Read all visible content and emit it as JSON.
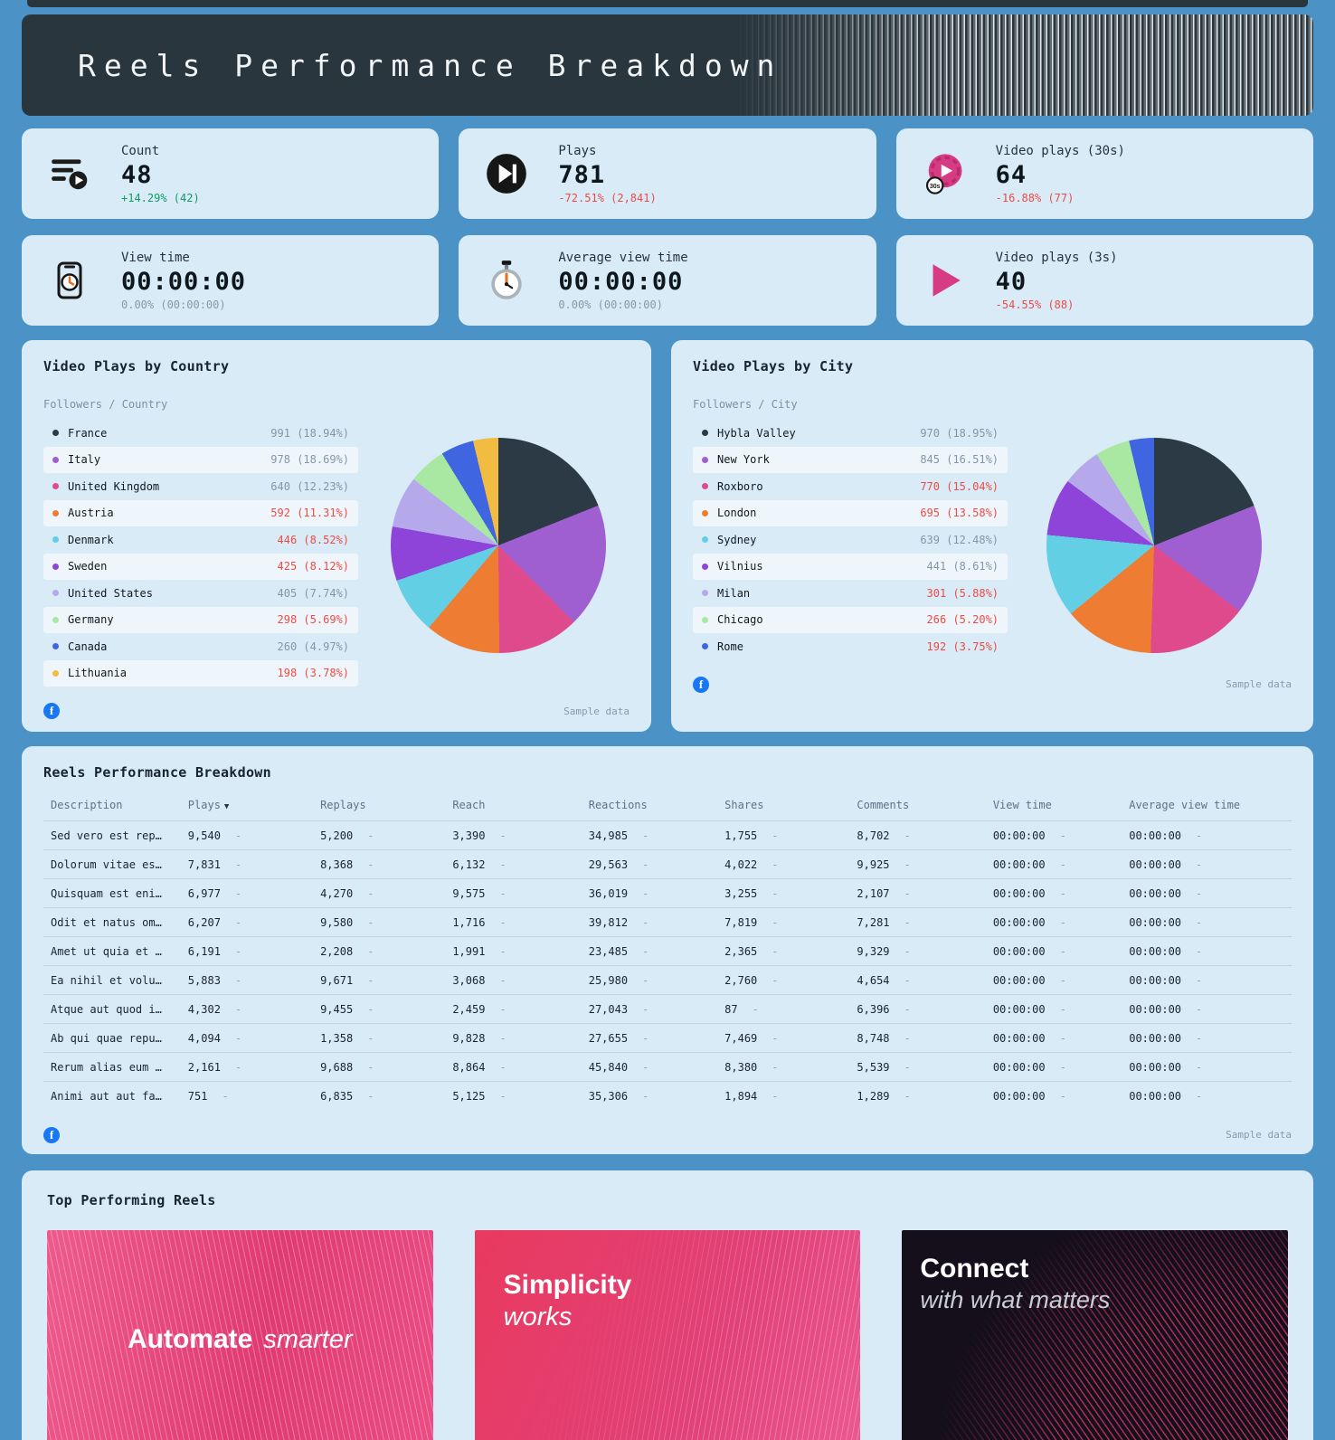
{
  "page": {
    "title": "Reels Performance Breakdown",
    "sample_data": "Sample data",
    "dash": "-"
  },
  "kpis": [
    {
      "label": "Count",
      "value": "48",
      "delta": "+14.29% (42)",
      "trend": "up"
    },
    {
      "label": "Plays",
      "value": "781",
      "delta": "-72.51% (2,841)",
      "trend": "down"
    },
    {
      "label": "Video plays (30s)",
      "value": "64",
      "delta": "-16.88% (77)",
      "trend": "down"
    },
    {
      "label": "View time",
      "value": "00:00:00",
      "delta": "0.00% (00:00:00)",
      "trend": "flat"
    },
    {
      "label": "Average view time",
      "value": "00:00:00",
      "delta": "0.00% (00:00:00)",
      "trend": "flat"
    },
    {
      "label": "Video plays (3s)",
      "value": "40",
      "delta": "-54.55% (88)",
      "trend": "down"
    }
  ],
  "country_chart": {
    "title": "Video Plays by Country",
    "legend_label": "Followers / Country",
    "items": [
      {
        "label": "France",
        "value": "991 (18.94%)",
        "pct": 18.94,
        "color": "#2b3a45",
        "value_color": "muted"
      },
      {
        "label": "Italy",
        "value": "978 (18.69%)",
        "pct": 18.69,
        "color": "#a05fd0",
        "value_color": "muted"
      },
      {
        "label": "United Kingdom",
        "value": "640 (12.23%)",
        "pct": 12.23,
        "color": "#df4a8c",
        "value_color": "muted"
      },
      {
        "label": "Austria",
        "value": "592 (11.31%)",
        "pct": 11.31,
        "color": "#ee7d33",
        "value_color": "neg"
      },
      {
        "label": "Denmark",
        "value": "446 (8.52%)",
        "pct": 8.52,
        "color": "#63cfe4",
        "value_color": "neg"
      },
      {
        "label": "Sweden",
        "value": "425 (8.12%)",
        "pct": 8.12,
        "color": "#8e44d8",
        "value_color": "neg"
      },
      {
        "label": "United States",
        "value": "405 (7.74%)",
        "pct": 7.74,
        "color": "#b5a9ec",
        "value_color": "muted"
      },
      {
        "label": "Germany",
        "value": "298 (5.69%)",
        "pct": 5.69,
        "color": "#a8e8a2",
        "value_color": "neg"
      },
      {
        "label": "Canada",
        "value": "260 (4.97%)",
        "pct": 4.97,
        "color": "#3f66e0",
        "value_color": "muted"
      },
      {
        "label": "Lithuania",
        "value": "198 (3.78%)",
        "pct": 3.78,
        "color": "#f2bc42",
        "value_color": "neg"
      }
    ]
  },
  "city_chart": {
    "title": "Video Plays by City",
    "legend_label": "Followers / City",
    "items": [
      {
        "label": "Hybla Valley",
        "value": "970 (18.95%)",
        "pct": 18.95,
        "color": "#2b3a45",
        "value_color": "muted"
      },
      {
        "label": "New York",
        "value": "845 (16.51%)",
        "pct": 16.51,
        "color": "#a05fd0",
        "value_color": "muted"
      },
      {
        "label": "Roxboro",
        "value": "770 (15.04%)",
        "pct": 15.04,
        "color": "#df4a8c",
        "value_color": "neg"
      },
      {
        "label": "London",
        "value": "695 (13.58%)",
        "pct": 13.58,
        "color": "#ee7d33",
        "value_color": "neg"
      },
      {
        "label": "Sydney",
        "value": "639 (12.48%)",
        "pct": 12.48,
        "color": "#63cfe4",
        "value_color": "muted"
      },
      {
        "label": "Vilnius",
        "value": "441 (8.61%)",
        "pct": 8.61,
        "color": "#8e44d8",
        "value_color": "muted"
      },
      {
        "label": "Milan",
        "value": "301 (5.88%)",
        "pct": 5.88,
        "color": "#b5a9ec",
        "value_color": "neg"
      },
      {
        "label": "Chicago",
        "value": "266 (5.20%)",
        "pct": 5.2,
        "color": "#a8e8a2",
        "value_color": "neg"
      },
      {
        "label": "Rome",
        "value": "192 (3.75%)",
        "pct": 3.75,
        "color": "#3f66e0",
        "value_color": "neg"
      }
    ]
  },
  "table": {
    "title": "Reels Performance Breakdown",
    "sort_column": "Plays",
    "columns": [
      "Description",
      "Plays",
      "Replays",
      "Reach",
      "Reactions",
      "Shares",
      "Comments",
      "View time",
      "Average view time"
    ],
    "rows": [
      [
        "Sed vero est rep…",
        "9,540",
        "5,200",
        "3,390",
        "34,985",
        "1,755",
        "8,702",
        "00:00:00",
        "00:00:00"
      ],
      [
        "Dolorum vitae es…",
        "7,831",
        "8,368",
        "6,132",
        "29,563",
        "4,022",
        "9,925",
        "00:00:00",
        "00:00:00"
      ],
      [
        "Quisquam est eni…",
        "6,977",
        "4,270",
        "9,575",
        "36,019",
        "3,255",
        "2,107",
        "00:00:00",
        "00:00:00"
      ],
      [
        "Odit et natus om…",
        "6,207",
        "9,580",
        "1,716",
        "39,812",
        "7,819",
        "7,281",
        "00:00:00",
        "00:00:00"
      ],
      [
        "Amet ut quia et …",
        "6,191",
        "2,208",
        "1,991",
        "23,485",
        "2,365",
        "9,329",
        "00:00:00",
        "00:00:00"
      ],
      [
        "Ea nihil et volu…",
        "5,883",
        "9,671",
        "3,068",
        "25,980",
        "2,760",
        "4,654",
        "00:00:00",
        "00:00:00"
      ],
      [
        "Atque aut quod i…",
        "4,302",
        "9,455",
        "2,459",
        "27,043",
        "87",
        "6,396",
        "00:00:00",
        "00:00:00"
      ],
      [
        "Ab qui quae repu…",
        "4,094",
        "1,358",
        "9,828",
        "27,655",
        "7,469",
        "8,748",
        "00:00:00",
        "00:00:00"
      ],
      [
        "Rerum alias eum …",
        "2,161",
        "9,688",
        "8,864",
        "45,840",
        "8,380",
        "5,539",
        "00:00:00",
        "00:00:00"
      ],
      [
        "Animi aut aut fa…",
        "751",
        "6,835",
        "5,125",
        "35,306",
        "1,894",
        "1,289",
        "00:00:00",
        "00:00:00"
      ]
    ]
  },
  "reels": {
    "title": "Top Performing Reels",
    "items": [
      {
        "title_bold": "Automate",
        "title_italic": "smarter"
      },
      {
        "title_bold": "Simplicity",
        "title_italic": "works"
      },
      {
        "title_bold": "Connect",
        "title_italic": "with what matters"
      }
    ]
  },
  "chart_data": [
    {
      "type": "pie",
      "title": "Video Plays by Country",
      "labels": [
        "France",
        "Italy",
        "United Kingdom",
        "Austria",
        "Denmark",
        "Sweden",
        "United States",
        "Germany",
        "Canada",
        "Lithuania"
      ],
      "values": [
        991,
        978,
        640,
        592,
        446,
        425,
        405,
        298,
        260,
        198
      ],
      "percents": [
        18.94,
        18.69,
        12.23,
        11.31,
        8.52,
        8.12,
        7.74,
        5.69,
        4.97,
        3.78
      ],
      "legend_position": "left"
    },
    {
      "type": "pie",
      "title": "Video Plays by City",
      "labels": [
        "Hybla Valley",
        "New York",
        "Roxboro",
        "London",
        "Sydney",
        "Vilnius",
        "Milan",
        "Chicago",
        "Rome"
      ],
      "values": [
        970,
        845,
        770,
        695,
        639,
        441,
        301,
        266,
        192
      ],
      "percents": [
        18.95,
        16.51,
        15.04,
        13.58,
        12.48,
        8.61,
        5.88,
        5.2,
        3.75
      ],
      "legend_position": "left"
    }
  ]
}
